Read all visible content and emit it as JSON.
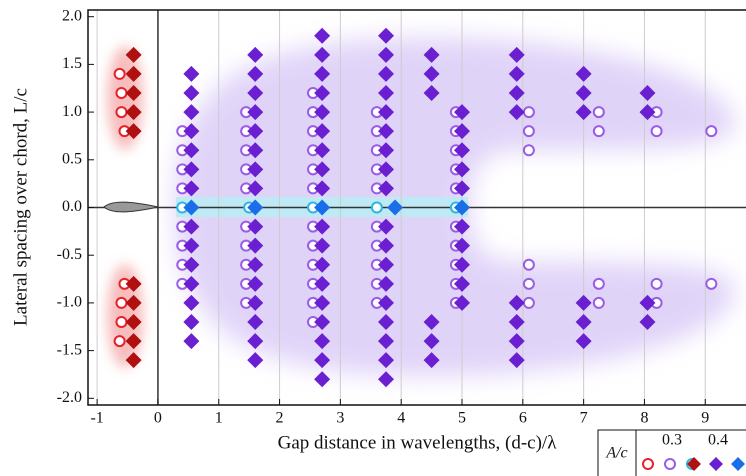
{
  "chart_data": {
    "type": "scatter",
    "xlabel": "Gap distance in wavelengths, (d-c)/λ",
    "ylabel": "Lateral spacing over chord, L/c",
    "xlim": [
      -1.15,
      9.67
    ],
    "ylim": [
      -2.07,
      2.07
    ],
    "xticks": [
      -1,
      0,
      1,
      2,
      3,
      4,
      5,
      6,
      7,
      8,
      9
    ],
    "yticks": [
      {
        "value": 2,
        "label": "2.0"
      },
      1.5,
      {
        "value": 1,
        "label": "1.0"
      },
      0.5,
      {
        "value": 0,
        "label": "0.0"
      },
      -0.5,
      {
        "value": -1,
        "label": "-1.0"
      },
      -1.5,
      {
        "value": -2,
        "label": "-2.0"
      }
    ],
    "grid": "x",
    "legend": {
      "title": "A/c",
      "groups": [
        "0.3",
        "0.4"
      ],
      "position": "bottom-right"
    },
    "series": [
      {
        "marker": "circle",
        "color": "#e8202a",
        "x": [
          -0.63,
          -0.6,
          -0.6,
          -0.55,
          -0.55,
          -0.6,
          -0.6,
          -0.63
        ],
        "y": [
          1.4,
          1.2,
          1.0,
          0.8,
          -0.8,
          -1.0,
          -1.2,
          -1.4
        ]
      },
      {
        "marker": "circle",
        "color": "#9a5ce6",
        "x": [
          0.4,
          0.4,
          0.4,
          0.4,
          0.4,
          0.4,
          0.4,
          0.4,
          1.45,
          1.45,
          1.45,
          1.45,
          1.45,
          1.45,
          1.45,
          1.45,
          1.45,
          1.45,
          2.55,
          2.55,
          2.55,
          2.55,
          2.55,
          2.55,
          2.55,
          2.55,
          2.55,
          2.55,
          2.55,
          2.55,
          3.6,
          3.6,
          3.6,
          3.6,
          3.6,
          3.6,
          3.6,
          3.6,
          3.6,
          3.6,
          4.9,
          4.9,
          4.9,
          4.9,
          4.9,
          4.9,
          4.9,
          4.9,
          4.9,
          4.9,
          6.1,
          6.1,
          6.1,
          6.1,
          6.1,
          6.1,
          7.25,
          7.25,
          7.25,
          7.25,
          8.2,
          8.2,
          8.2,
          8.2,
          9.1,
          9.1
        ],
        "y": [
          0.8,
          0.6,
          0.4,
          0.2,
          -0.2,
          -0.4,
          -0.6,
          -0.8,
          1.0,
          0.8,
          0.6,
          0.4,
          0.2,
          -0.2,
          -0.4,
          -0.6,
          -0.8,
          -1.0,
          1.2,
          1.0,
          0.8,
          0.6,
          0.4,
          0.2,
          -0.2,
          -0.4,
          -0.6,
          -0.8,
          -1.0,
          -1.2,
          1.0,
          0.8,
          0.6,
          0.4,
          0.2,
          -0.2,
          -0.4,
          -0.6,
          -0.8,
          -1.0,
          1.0,
          0.8,
          0.6,
          0.4,
          0.2,
          -0.2,
          -0.4,
          -0.6,
          -0.8,
          -1.0,
          1.0,
          0.8,
          0.6,
          -0.6,
          -0.8,
          -1.0,
          1.0,
          0.8,
          -0.8,
          -1.0,
          1.0,
          0.8,
          -0.8,
          -1.0,
          0.8,
          -0.8
        ]
      },
      {
        "marker": "circle",
        "color": "#29b6e0",
        "x": [
          0.4,
          1.5,
          2.55,
          3.6,
          4.9
        ],
        "y": [
          0,
          0,
          0,
          0,
          0
        ]
      },
      {
        "marker": "diamond",
        "color": "#b01010",
        "x": [
          -0.4,
          -0.4,
          -0.4,
          -0.4,
          -0.4,
          -0.4,
          -0.4,
          -0.4,
          -0.4,
          -0.4
        ],
        "y": [
          1.6,
          1.4,
          1.2,
          1.0,
          0.8,
          -0.8,
          -1.0,
          -1.2,
          -1.4,
          -1.6
        ]
      },
      {
        "marker": "diamond",
        "color": "#6a1fd0",
        "x": [
          0.55,
          0.55,
          0.55,
          0.55,
          0.55,
          0.55,
          0.55,
          0.55,
          0.55,
          0.55,
          0.55,
          0.55,
          0.55,
          0.55,
          1.6,
          1.6,
          1.6,
          1.6,
          1.6,
          1.6,
          1.6,
          1.6,
          1.6,
          1.6,
          1.6,
          1.6,
          1.6,
          1.6,
          1.6,
          1.6,
          2.7,
          2.7,
          2.7,
          2.7,
          2.7,
          2.7,
          2.7,
          2.7,
          2.7,
          2.7,
          2.7,
          2.7,
          2.7,
          2.7,
          2.7,
          2.7,
          2.7,
          2.7,
          3.75,
          3.75,
          3.75,
          3.75,
          3.75,
          3.75,
          3.75,
          3.75,
          3.75,
          3.75,
          3.75,
          3.75,
          3.75,
          3.75,
          3.75,
          3.75,
          3.75,
          3.75,
          4.5,
          4.5,
          4.5,
          4.5,
          4.5,
          4.5,
          5.0,
          5.0,
          5.0,
          5.0,
          5.0,
          5.0,
          5.0,
          5.0,
          5.0,
          5.0,
          5.9,
          5.9,
          5.9,
          5.9,
          5.9,
          5.9,
          5.9,
          5.9,
          7.0,
          7.0,
          7.0,
          7.0,
          7.0,
          7.0,
          8.05,
          8.05,
          8.05,
          8.05
        ],
        "y": [
          1.4,
          1.2,
          1.0,
          0.8,
          0.6,
          0.4,
          0.2,
          -0.2,
          -0.4,
          -0.6,
          -0.8,
          -1.0,
          -1.2,
          -1.4,
          1.6,
          1.4,
          1.2,
          1.0,
          0.8,
          0.6,
          0.4,
          0.2,
          -0.2,
          -0.4,
          -0.6,
          -0.8,
          -1.0,
          -1.2,
          -1.4,
          -1.6,
          1.8,
          1.6,
          1.4,
          1.2,
          1.0,
          0.8,
          0.6,
          0.4,
          0.2,
          -0.2,
          -0.4,
          -0.6,
          -0.8,
          -1.0,
          -1.2,
          -1.4,
          -1.6,
          -1.8,
          1.8,
          1.6,
          1.4,
          1.2,
          1.0,
          0.8,
          0.6,
          0.4,
          0.2,
          -0.2,
          -0.4,
          -0.6,
          -0.8,
          -1.0,
          -1.2,
          -1.4,
          -1.6,
          -1.8,
          1.6,
          1.4,
          1.2,
          -1.2,
          -1.4,
          -1.6,
          1.0,
          0.8,
          0.6,
          0.4,
          0.2,
          -0.2,
          -0.4,
          -0.6,
          -0.8,
          -1.0,
          1.6,
          1.4,
          1.2,
          1.0,
          -1.0,
          -1.2,
          -1.4,
          -1.6,
          1.4,
          1.2,
          1.0,
          -1.0,
          -1.2,
          -1.4,
          1.2,
          1.0,
          -1.0,
          -1.2
        ]
      },
      {
        "marker": "diamond",
        "color": "#1a6ee8",
        "x": [
          0.55,
          1.6,
          2.7,
          3.9,
          5.0
        ],
        "y": [
          0,
          0,
          0,
          0,
          0
        ]
      }
    ]
  }
}
